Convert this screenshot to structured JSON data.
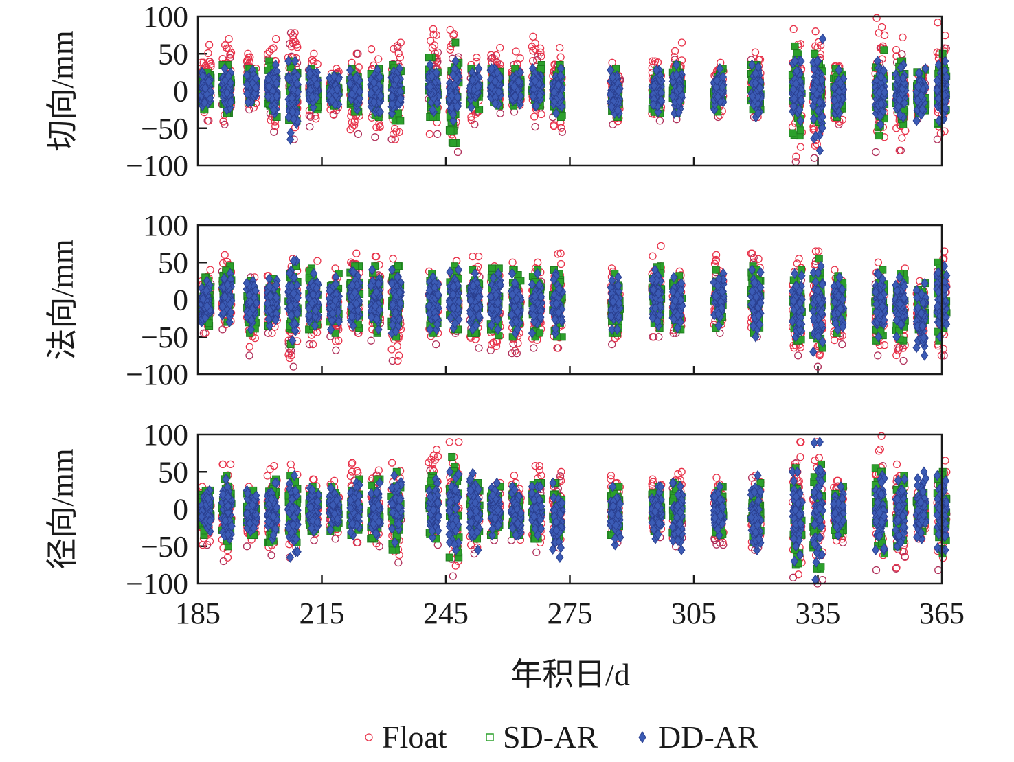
{
  "figure": {
    "x_axis_label": "年积日/d",
    "x_ticks": [
      "185",
      "215",
      "245",
      "275",
      "305",
      "335",
      "365"
    ]
  },
  "legend": [
    {
      "label": "Float",
      "marker": "circle",
      "color": "#e8334a"
    },
    {
      "label": "SD-AR",
      "marker": "square",
      "color": "#2ca02c"
    },
    {
      "label": "DD-AR",
      "marker": "diamond",
      "color": "#3b5bb5"
    }
  ],
  "chart_data": [
    {
      "type": "scatter",
      "title": "",
      "ylabel": "切向/mm",
      "xlabel": "年积日/d",
      "xlim": [
        185,
        365
      ],
      "ylim": [
        -100,
        100
      ],
      "y_ticks": [
        "100",
        "50",
        "0",
        "−50",
        "−100"
      ],
      "grid": false,
      "legend_position": "bottom-center",
      "series_summary": "per-day clusters of position error samples (min/max envelope per day)",
      "days": [
        187,
        192,
        198,
        203,
        208,
        213,
        218,
        223,
        228,
        233,
        242,
        247,
        252,
        257,
        262,
        267,
        272,
        286,
        296,
        301,
        311,
        320,
        330,
        335,
        340,
        350,
        355,
        360,
        365
      ],
      "float_min": [
        -40,
        -45,
        -25,
        -55,
        -65,
        -48,
        -32,
        -58,
        -62,
        -65,
        -58,
        -82,
        -45,
        -30,
        -28,
        -48,
        -55,
        -45,
        -40,
        -38,
        -35,
        -35,
        -95,
        -90,
        -45,
        -82,
        -80,
        -38,
        -65
      ],
      "float_max": [
        62,
        70,
        50,
        70,
        78,
        50,
        30,
        50,
        56,
        65,
        83,
        82,
        45,
        58,
        53,
        73,
        58,
        38,
        40,
        65,
        38,
        52,
        83,
        80,
        33,
        98,
        72,
        30,
        92
      ],
      "sd_min": [
        -25,
        -30,
        -15,
        -35,
        -40,
        -25,
        -20,
        -28,
        -35,
        -40,
        -35,
        -70,
        -25,
        -20,
        -20,
        -20,
        -35,
        -35,
        -30,
        -30,
        -28,
        -25,
        -60,
        -45,
        -35,
        -60,
        -45,
        -30,
        -45
      ],
      "sd_max": [
        25,
        35,
        30,
        40,
        40,
        30,
        20,
        30,
        30,
        35,
        45,
        65,
        30,
        30,
        30,
        35,
        35,
        30,
        28,
        35,
        30,
        35,
        60,
        50,
        30,
        55,
        40,
        28,
        50
      ],
      "dd_min": [
        -20,
        -25,
        -15,
        -30,
        -65,
        -22,
        -18,
        -25,
        -28,
        -30,
        -28,
        -40,
        -22,
        -18,
        -18,
        -20,
        -30,
        -30,
        -28,
        -30,
        -25,
        -35,
        -40,
        -80,
        -30,
        -45,
        -35,
        -40,
        -40
      ],
      "dd_max": [
        25,
        30,
        28,
        35,
        40,
        28,
        20,
        28,
        28,
        30,
        35,
        40,
        30,
        30,
        25,
        30,
        30,
        28,
        28,
        35,
        30,
        35,
        40,
        70,
        28,
        40,
        35,
        30,
        40
      ]
    },
    {
      "type": "scatter",
      "title": "",
      "ylabel": "法向/mm",
      "xlabel": "年积日/d",
      "xlim": [
        185,
        365
      ],
      "ylim": [
        -100,
        100
      ],
      "y_ticks": [
        "100",
        "50",
        "0",
        "−50",
        "−100"
      ],
      "grid": false,
      "legend_position": "bottom-center",
      "series_summary": "per-day clusters of position error samples (min/max envelope per day)",
      "days": [
        187,
        192,
        198,
        203,
        208,
        213,
        218,
        223,
        228,
        233,
        242,
        247,
        252,
        257,
        262,
        267,
        272,
        286,
        296,
        301,
        311,
        320,
        330,
        335,
        340,
        350,
        355,
        360,
        365
      ],
      "float_min": [
        -45,
        -40,
        -75,
        -45,
        -90,
        -60,
        -68,
        -45,
        -55,
        -82,
        -60,
        -45,
        -65,
        -68,
        -72,
        -65,
        -65,
        -60,
        -50,
        -45,
        -45,
        -50,
        -75,
        -90,
        -60,
        -75,
        -82,
        -45,
        -75
      ],
      "float_max": [
        40,
        60,
        30,
        32,
        55,
        52,
        42,
        62,
        58,
        55,
        38,
        52,
        58,
        45,
        50,
        50,
        62,
        42,
        72,
        38,
        60,
        62,
        55,
        65,
        40,
        50,
        42,
        25,
        65
      ],
      "sd_min": [
        -35,
        -30,
        -45,
        -35,
        -60,
        -40,
        -45,
        -38,
        -45,
        -50,
        -45,
        -40,
        -45,
        -48,
        -50,
        -50,
        -50,
        -45,
        -38,
        -40,
        -38,
        -45,
        -55,
        -65,
        -45,
        -55,
        -55,
        -40,
        -55
      ],
      "sd_max": [
        30,
        45,
        25,
        28,
        45,
        42,
        35,
        45,
        45,
        45,
        35,
        45,
        40,
        42,
        40,
        40,
        40,
        35,
        45,
        32,
        40,
        45,
        40,
        55,
        32,
        40,
        35,
        22,
        50
      ],
      "dd_min": [
        -30,
        -30,
        -40,
        -35,
        -55,
        -35,
        -40,
        -35,
        -40,
        -45,
        -40,
        -38,
        -40,
        -40,
        -45,
        -45,
        -45,
        -40,
        -35,
        -38,
        -35,
        -50,
        -50,
        -70,
        -40,
        -50,
        -50,
        -75,
        -50
      ],
      "dd_max": [
        25,
        35,
        25,
        28,
        52,
        35,
        30,
        38,
        40,
        40,
        30,
        40,
        35,
        35,
        35,
        35,
        35,
        30,
        40,
        30,
        35,
        40,
        35,
        45,
        30,
        35,
        30,
        22,
        45
      ]
    },
    {
      "type": "scatter",
      "title": "",
      "ylabel": "径向/mm",
      "xlabel": "年积日/d",
      "xlim": [
        185,
        365
      ],
      "ylim": [
        -100,
        100
      ],
      "y_ticks": [
        "100",
        "50",
        "0",
        "−50",
        "−100"
      ],
      "grid": false,
      "legend_position": "bottom-center",
      "series_summary": "per-day clusters of position error samples (min/max envelope per day)",
      "days": [
        187,
        192,
        198,
        203,
        208,
        213,
        218,
        223,
        228,
        233,
        242,
        247,
        252,
        257,
        262,
        267,
        272,
        286,
        296,
        301,
        311,
        320,
        330,
        335,
        340,
        350,
        355,
        360,
        365
      ],
      "float_min": [
        -48,
        -70,
        -50,
        -62,
        -65,
        -42,
        -40,
        -45,
        -50,
        -72,
        -48,
        -90,
        -60,
        -42,
        -42,
        -58,
        -52,
        -45,
        -38,
        -50,
        -48,
        -55,
        -92,
        -100,
        -45,
        -82,
        -80,
        -40,
        -82
      ],
      "float_max": [
        30,
        60,
        30,
        58,
        60,
        40,
        38,
        62,
        52,
        62,
        80,
        90,
        45,
        35,
        45,
        58,
        50,
        45,
        40,
        50,
        42,
        45,
        90,
        90,
        38,
        98,
        60,
        30,
        65
      ],
      "sd_min": [
        -35,
        -50,
        -35,
        -45,
        -45,
        -30,
        -30,
        -35,
        -40,
        -55,
        -40,
        -65,
        -40,
        -35,
        -35,
        -40,
        -40,
        -35,
        -30,
        -40,
        -35,
        -45,
        -75,
        -80,
        -35,
        -60,
        -50,
        -30,
        -60
      ],
      "sd_max": [
        25,
        45,
        25,
        40,
        45,
        30,
        30,
        40,
        40,
        50,
        45,
        70,
        35,
        30,
        30,
        35,
        35,
        30,
        30,
        35,
        30,
        35,
        55,
        60,
        30,
        55,
        45,
        25,
        50
      ],
      "dd_min": [
        -30,
        -40,
        -30,
        -40,
        -65,
        -30,
        -28,
        -35,
        -35,
        -45,
        -38,
        -55,
        -55,
        -35,
        -35,
        -35,
        -65,
        -48,
        -40,
        -55,
        -35,
        -55,
        -70,
        -95,
        -35,
        -55,
        -50,
        -40,
        -55
      ],
      "dd_max": [
        25,
        40,
        25,
        35,
        45,
        28,
        28,
        35,
        35,
        45,
        40,
        50,
        48,
        35,
        30,
        30,
        35,
        30,
        30,
        35,
        30,
        45,
        50,
        90,
        30,
        45,
        40,
        50,
        45
      ]
    }
  ]
}
